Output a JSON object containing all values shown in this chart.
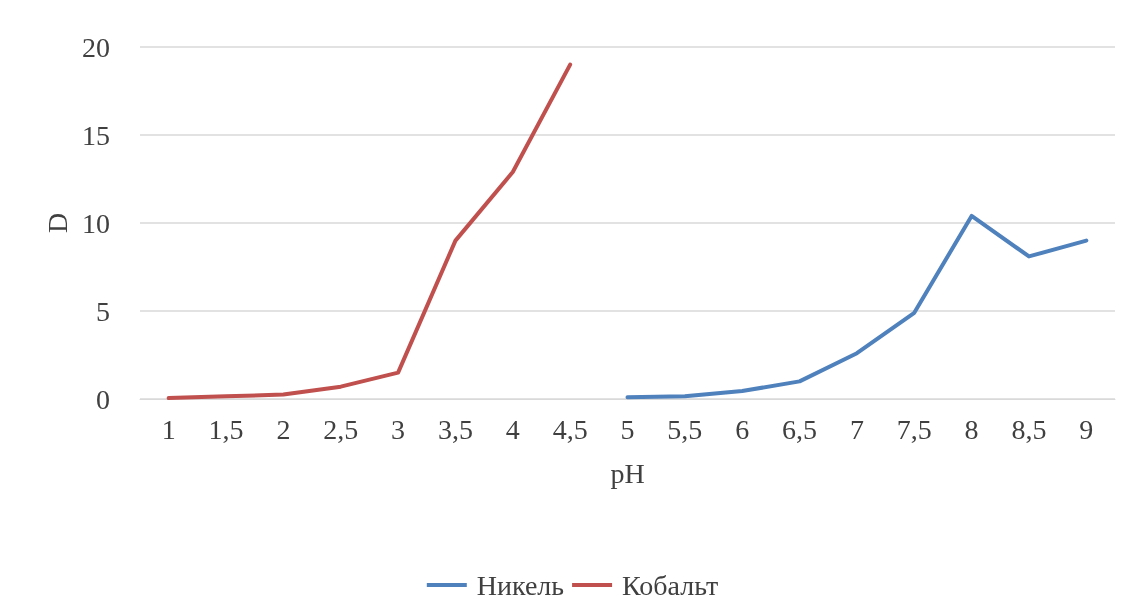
{
  "chart_data": {
    "type": "line",
    "xlabel": "pH",
    "ylabel": "D",
    "categories": [
      "1",
      "1,5",
      "2",
      "2,5",
      "3",
      "3,5",
      "4",
      "4,5",
      "5",
      "5,5",
      "6",
      "6,5",
      "7",
      "7,5",
      "8",
      "8,5",
      "9"
    ],
    "series": [
      {
        "name": "Никель",
        "color": "#4f81bd",
        "values": [
          null,
          null,
          null,
          null,
          null,
          null,
          null,
          null,
          0.1,
          0.15,
          0.45,
          1.0,
          2.6,
          4.9,
          10.4,
          8.1,
          9.0
        ]
      },
      {
        "name": "Кобальт",
        "color": "#c0504d",
        "values": [
          0.05,
          0.15,
          0.25,
          0.7,
          1.5,
          9,
          12.9,
          19,
          null,
          null,
          null,
          null,
          null,
          null,
          null,
          null,
          null
        ]
      }
    ],
    "ylim": [
      0,
      20
    ],
    "yticks": [
      0,
      5,
      10,
      15,
      20
    ],
    "grid": "y",
    "legend": "bottom",
    "marker": "none",
    "line_style": "solid"
  }
}
